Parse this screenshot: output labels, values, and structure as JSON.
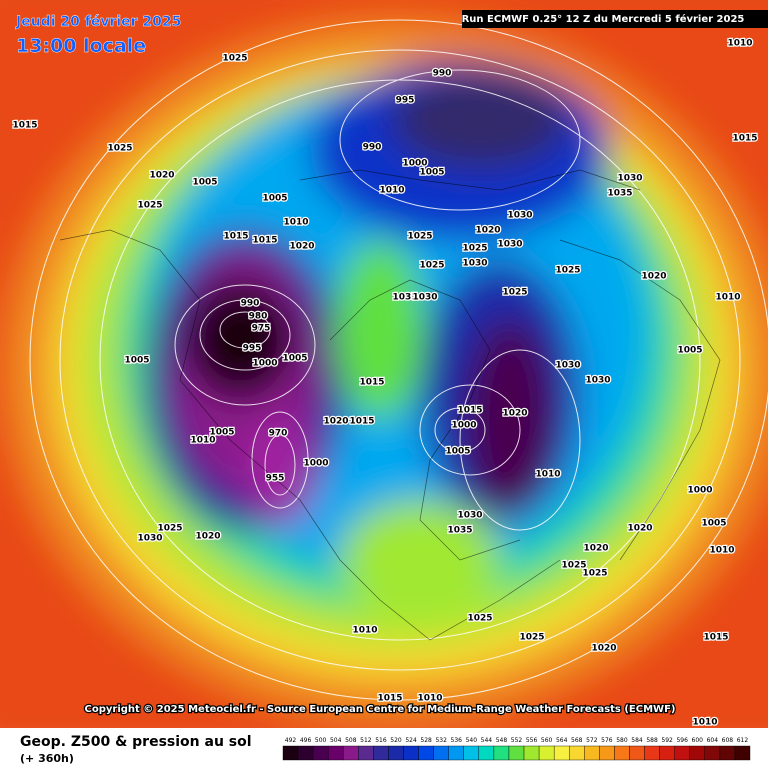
{
  "header": {
    "date": "Jeudi 20 février 2025",
    "time": "13:00 locale",
    "run": "Run ECMWF 0.25° 12 Z du Mercredi 5 février 2025",
    "copyright": "Copyright © 2025 Meteociel.fr - Source European Centre for Medium-Range Weather Forecasts (ECMWF)"
  },
  "footer": {
    "title": "Geop. Z500 & pression au sol",
    "lead": "(+ 360h)"
  },
  "scale": {
    "values": [
      492,
      496,
      500,
      504,
      508,
      512,
      516,
      520,
      524,
      528,
      532,
      536,
      540,
      544,
      548,
      552,
      556,
      560,
      564,
      568,
      572,
      576,
      580,
      584,
      588,
      592,
      596,
      600,
      604,
      608,
      612
    ],
    "colors": [
      "#1a0010",
      "#2e0030",
      "#4a0050",
      "#6a006a",
      "#8a1a8a",
      "#5a2a90",
      "#302a9a",
      "#1a2aa8",
      "#0a30c8",
      "#0048e6",
      "#0070f0",
      "#0098f0",
      "#00c0e8",
      "#00d8c0",
      "#20e080",
      "#60e040",
      "#a0e830",
      "#d8f030",
      "#f8f040",
      "#f8d830",
      "#f8b820",
      "#f89818",
      "#f87818",
      "#f05818",
      "#e83818",
      "#d82010",
      "#c01010",
      "#a00808",
      "#800808",
      "#600404",
      "#400000"
    ]
  },
  "isobar_labels": [
    "1025",
    "1015",
    "1025",
    "1020",
    "1005",
    "1025",
    "995",
    "990",
    "990",
    "1000",
    "1005",
    "1010",
    "1005",
    "1010",
    "1020",
    "1015",
    "1015",
    "1025",
    "1020",
    "1030",
    "1025",
    "1030",
    "1025",
    "1030",
    "1035",
    "1030",
    "1025",
    "1035",
    "1030",
    "990",
    "980",
    "975",
    "995",
    "1000",
    "1005",
    "1005",
    "1010",
    "1005",
    "970",
    "955",
    "1000",
    "1020",
    "1015",
    "1015",
    "1015",
    "1000",
    "1005",
    "1020",
    "1030",
    "1010",
    "1030",
    "1035",
    "1020",
    "1020",
    "1025",
    "1025",
    "1025",
    "1030",
    "1020",
    "1025",
    "1025",
    "1020",
    "1015",
    "1010",
    "1015",
    "1010",
    "1010",
    "1015",
    "1010",
    "1000",
    "1005",
    "1010",
    "1020",
    "1025",
    "1030",
    "1005",
    "1010"
  ]
}
